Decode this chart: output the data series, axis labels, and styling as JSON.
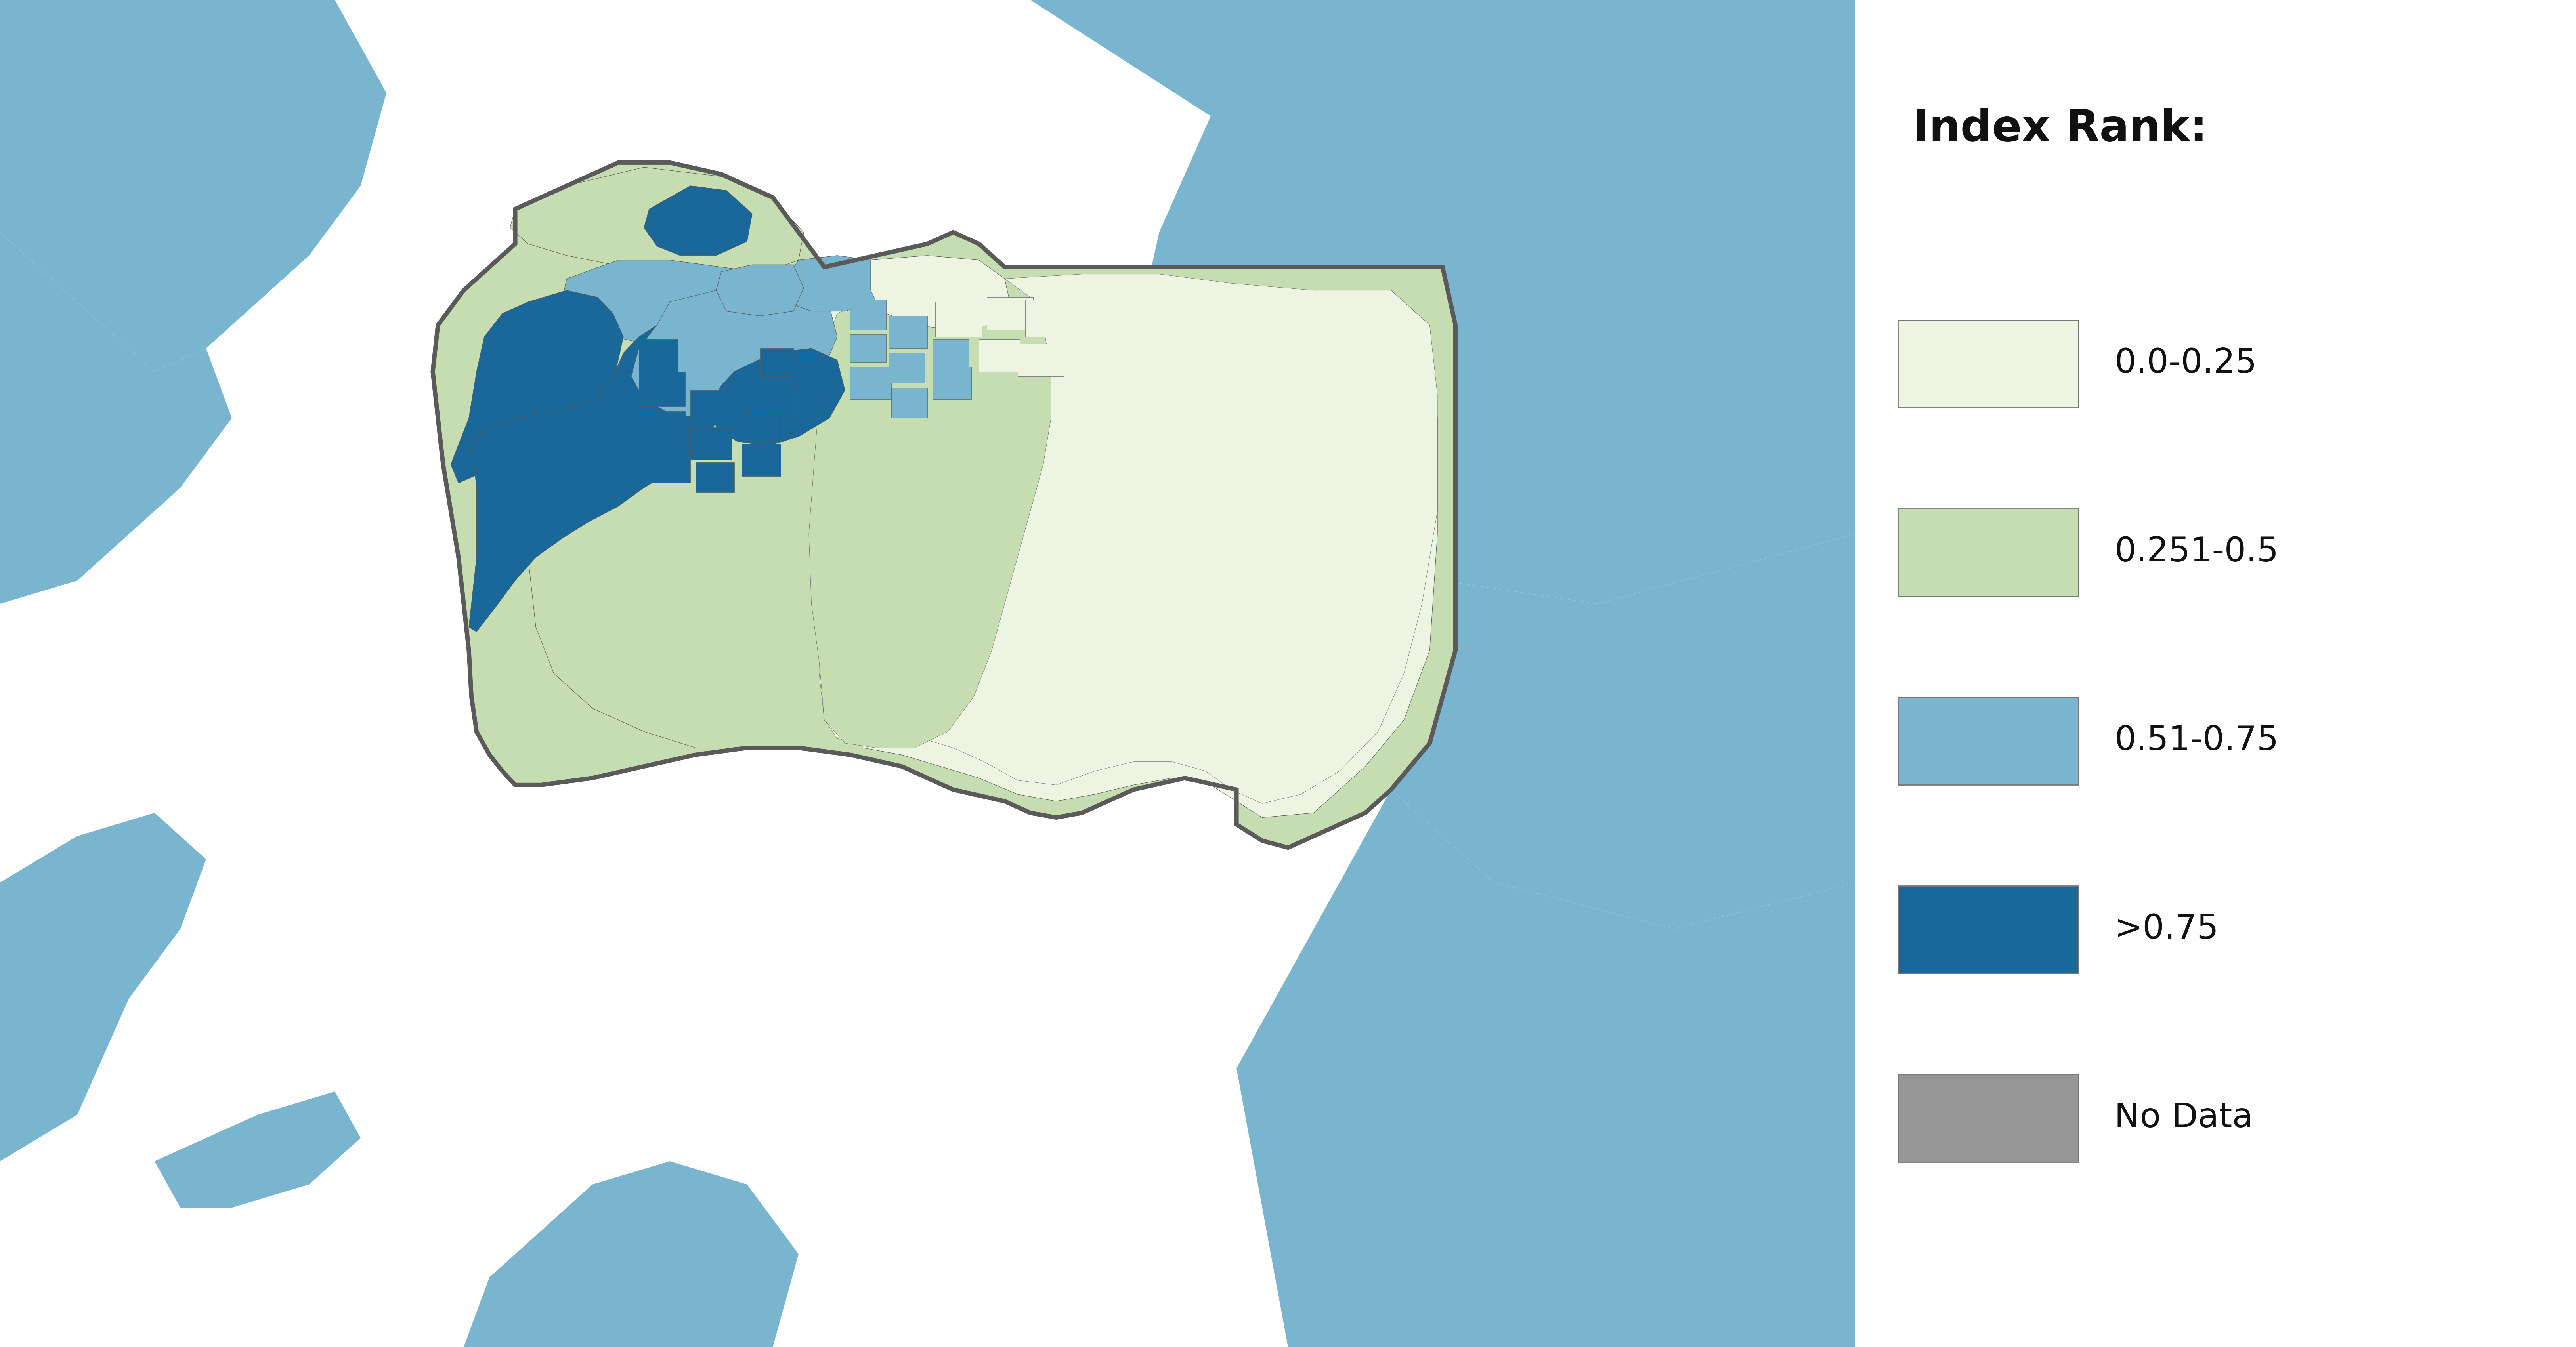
{
  "title": "Index Rank:",
  "map_bg_color": "#a8c4d8",
  "legend_bg_color": "#ffffff",
  "legend_items": [
    {
      "label": "0.0-0.25",
      "color": "#eef4e2"
    },
    {
      "label": "0.251-0.5",
      "color": "#c5ddb0"
    },
    {
      "label": "0.51-0.75",
      "color": "#7ab5cf"
    },
    {
      "label": ">0.75",
      "color": "#1a6899"
    },
    {
      "label": "No Data",
      "color": "#969696"
    }
  ],
  "title_fontsize": 80,
  "legend_fontsize": 62,
  "figsize": [
    65.0,
    34.0
  ],
  "dpi": 100,
  "border_color": "#5a5a5a",
  "border_lw": 8
}
